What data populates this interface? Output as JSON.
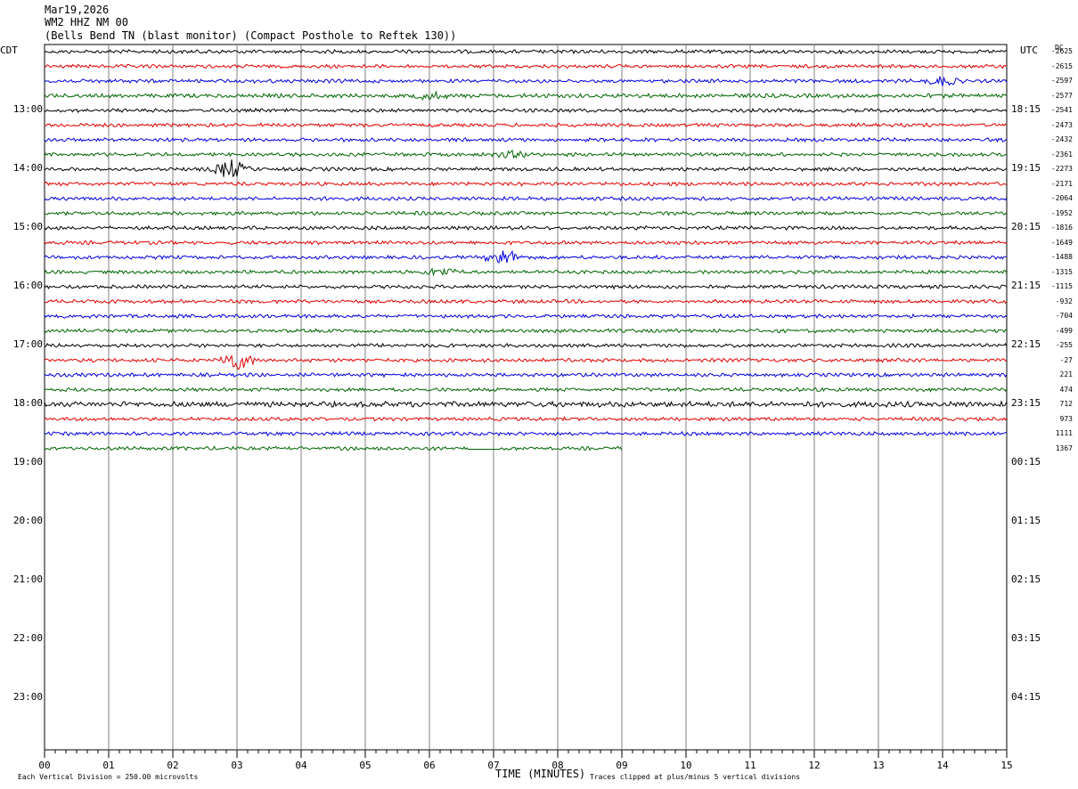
{
  "header": {
    "date": "Mar19,2026",
    "station": "WM2 HHZ NM 00",
    "description": "(Bells Bend TN (blast monitor) (Compact Posthole to Reftek 130))"
  },
  "labels": {
    "left_tz": "CDT",
    "right_tz": "UTC",
    "dc": "DC",
    "xlabel": "TIME (MINUTES)"
  },
  "footer": {
    "scale": "Each Vertical Division =  250.00 microvolts",
    "clip": "Traces clipped at plus/minus 5 vertical divisions"
  },
  "colors": {
    "trace_cycle": [
      "#000000",
      "#e00000",
      "#0000e0",
      "#006400"
    ],
    "grid": "#808080"
  },
  "chart_data": {
    "type": "line",
    "title": "Mar19,2026",
    "xlabel": "TIME (MINUTES)",
    "xlim": [
      0,
      15
    ],
    "x_ticks": [
      "00",
      "01",
      "02",
      "03",
      "04",
      "05",
      "06",
      "07",
      "08",
      "09",
      "10",
      "11",
      "12",
      "13",
      "14",
      "15"
    ],
    "left_hour_labels": [
      "13:00",
      "14:00",
      "15:00",
      "16:00",
      "17:00",
      "18:00",
      "19:00",
      "20:00",
      "21:00",
      "22:00",
      "23:00"
    ],
    "right_hour_labels": [
      "18:15",
      "19:15",
      "20:15",
      "21:15",
      "22:15",
      "23:15",
      "00:15",
      "01:15",
      "02:15",
      "03:15",
      "04:15"
    ],
    "trace_count": 28,
    "last_trace_end_minute": 9.0,
    "dc_offsets": [
      "-2625",
      "-2615",
      "-2597",
      "-2577",
      "-2541",
      "-2473",
      "-2432",
      "-2361",
      "-2273",
      "-2171",
      "-2064",
      "-1952",
      "-1816",
      "-1649",
      "-1488",
      "-1315",
      "-1115",
      "-932",
      "-704",
      "-499",
      "-255",
      "-27",
      "221",
      "474",
      "712",
      "973",
      "1111",
      "1367"
    ],
    "events": [
      {
        "trace": 2,
        "minute": 14.0,
        "amplitude": 1.3
      },
      {
        "trace": 3,
        "minute": 6.0,
        "amplitude": 0.9
      },
      {
        "trace": 7,
        "minute": 7.3,
        "amplitude": 0.8
      },
      {
        "trace": 8,
        "minute": 2.9,
        "amplitude": 2.6
      },
      {
        "trace": 15,
        "minute": 6.2,
        "amplitude": 0.9
      },
      {
        "trace": 14,
        "minute": 7.15,
        "amplitude": 2.2
      },
      {
        "trace": 21,
        "minute": 3.0,
        "amplitude": 2.6
      }
    ]
  }
}
